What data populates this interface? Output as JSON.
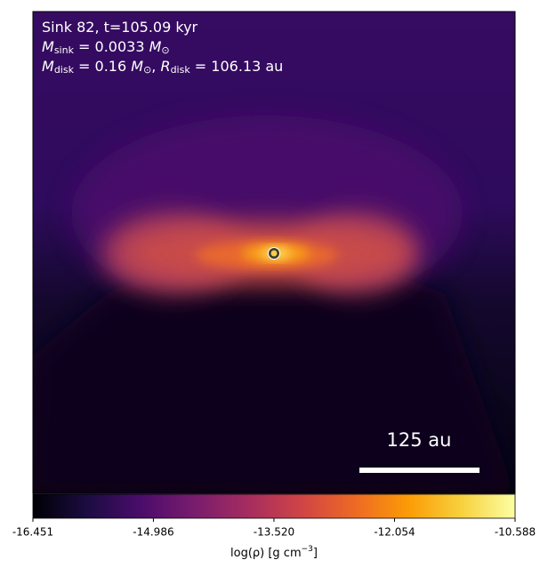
{
  "chart_data": {
    "type": "heatmap",
    "annotations": [
      [
        {
          "text": "Sink 82, t=105.09 kyr"
        }
      ],
      [
        {
          "text": "M",
          "italic": true
        },
        {
          "sub": "sink"
        },
        {
          "text": " = 0.0033 "
        },
        {
          "text": "M",
          "italic": true
        },
        {
          "sub": "⊙"
        }
      ],
      [
        {
          "text": "M",
          "italic": true
        },
        {
          "sub": "disk"
        },
        {
          "text": " = 0.16 "
        },
        {
          "text": "M",
          "italic": true
        },
        {
          "sub": "⊙"
        },
        {
          "text": ", "
        },
        {
          "text": "R",
          "italic": true
        },
        {
          "sub": "disk"
        },
        {
          "text": " = 106.13 au"
        }
      ]
    ],
    "scale_bar": {
      "label": "125 au"
    },
    "colorbar": {
      "clim": [
        -16.451,
        -10.588
      ],
      "ticks": [
        -16.451,
        -14.986,
        {
          "value": -13.52,
          "label": "-13.520"
        },
        -12.054,
        -10.588
      ],
      "label": [
        {
          "text": "log(ρ) [g cm"
        },
        {
          "sup": "−3"
        },
        {
          "text": "]"
        }
      ],
      "colormap": [
        "#000004",
        "#1b0c41",
        "#4a0c6b",
        "#781c6d",
        "#a52c60",
        "#cf4446",
        "#ed6925",
        "#fb9b06",
        "#f7d13d",
        "#fcffa4"
      ]
    }
  }
}
